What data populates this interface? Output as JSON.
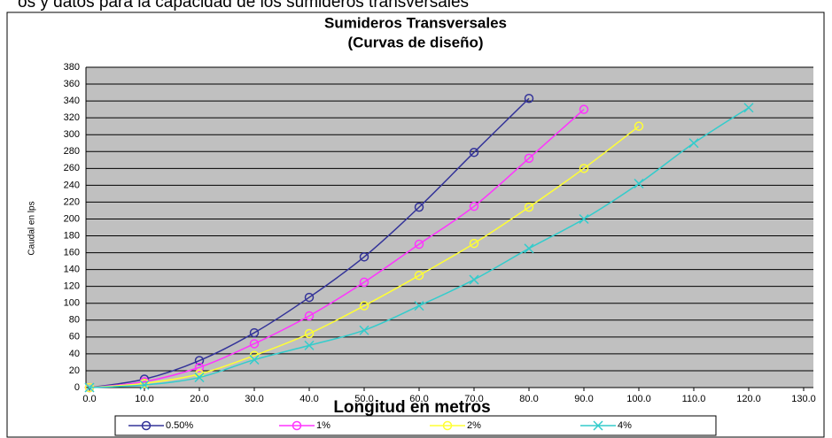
{
  "caption": "os y datos para la capacidad de los sumideros transversales",
  "chart_data": {
    "type": "line",
    "title": "Sumideros Transversales",
    "subtitle": "(Curvas de diseño)",
    "xlabel": "Longitud en metros",
    "ylabel": "Caudal en lps",
    "xlim": [
      0,
      130
    ],
    "xticks": [
      {
        "value": 0,
        "label": "0.0"
      },
      {
        "value": 10,
        "label": "10.0"
      },
      {
        "value": 20,
        "label": "20.0"
      },
      {
        "value": 30,
        "label": "30.0"
      },
      {
        "value": 40,
        "label": "40.0"
      },
      {
        "value": 50,
        "label": "50.0"
      },
      {
        "value": 60,
        "label": "60.0"
      },
      {
        "value": 70,
        "label": "70.0"
      },
      {
        "value": 80,
        "label": "80.0"
      },
      {
        "value": 90,
        "label": "90.0"
      },
      {
        "value": 100,
        "label": "100.0"
      },
      {
        "value": 110,
        "label": "110.0"
      },
      {
        "value": 120,
        "label": "120.0"
      },
      {
        "value": 130,
        "label": "130.0"
      }
    ],
    "ylim": [
      0,
      380
    ],
    "yticks": [
      0,
      20,
      40,
      60,
      80,
      100,
      120,
      140,
      160,
      180,
      200,
      220,
      240,
      260,
      280,
      300,
      320,
      340,
      360,
      380
    ],
    "grid": true,
    "series": [
      {
        "name": "0.50%",
        "color": "#333399",
        "marker": "circle",
        "x": [
          0,
          10,
          20,
          30,
          40,
          50,
          60,
          70,
          80
        ],
        "values": [
          0,
          10,
          32,
          65,
          107,
          155,
          214,
          279,
          343
        ]
      },
      {
        "name": "1%",
        "color": "#ff33ff",
        "marker": "circle",
        "x": [
          0,
          10,
          20,
          30,
          40,
          50,
          60,
          70,
          80,
          90
        ],
        "values": [
          0,
          7,
          24,
          52,
          85,
          125,
          170,
          215,
          272,
          330
        ]
      },
      {
        "name": "2%",
        "color": "#ffff33",
        "marker": "circle",
        "x": [
          0,
          10,
          20,
          30,
          40,
          50,
          60,
          70,
          80,
          90,
          100
        ],
        "values": [
          0,
          5,
          16,
          38,
          64,
          97,
          133,
          171,
          214,
          260,
          310
        ]
      },
      {
        "name": "4%",
        "color": "#33cccc",
        "marker": "x",
        "x": [
          0,
          10,
          20,
          30,
          40,
          50,
          60,
          70,
          80,
          90,
          100,
          110,
          120
        ],
        "values": [
          0,
          3,
          12,
          33,
          50,
          68,
          97,
          128,
          165,
          200,
          242,
          290,
          332
        ]
      }
    ]
  }
}
